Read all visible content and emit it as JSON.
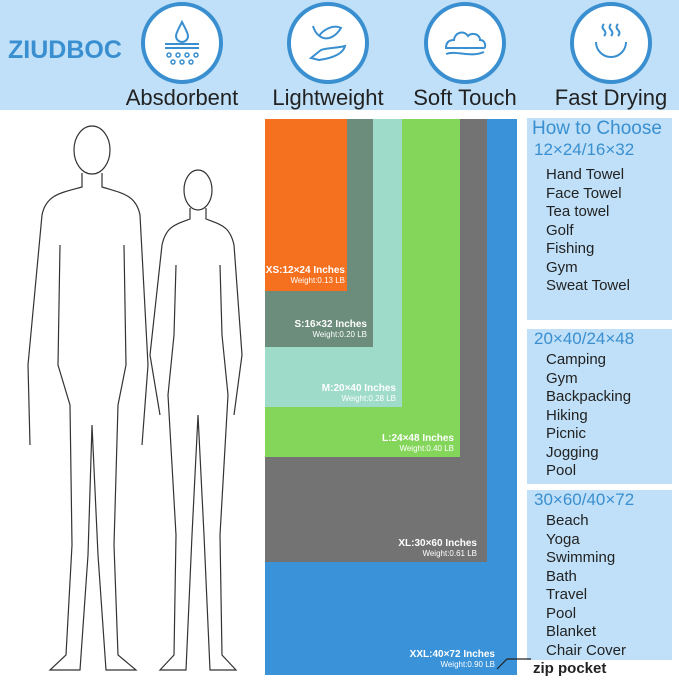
{
  "brand": "ZIUDBOC",
  "features": [
    {
      "label": "Absdorbent",
      "icon": "water-drop-absorb-icon"
    },
    {
      "label": "Lightweight",
      "icon": "feather-hand-icon"
    },
    {
      "label": "Soft Touch",
      "icon": "cloud-icon"
    },
    {
      "label": "Fast Drying",
      "icon": "steam-icon"
    }
  ],
  "sizes": [
    {
      "size": "XS:12×24 Inches",
      "weight": "Weight:0.13 LB",
      "color": "#f6711f"
    },
    {
      "size": "S:16×32 Inches",
      "weight": "Weight:0.20 LB",
      "color": "#6c8c7c"
    },
    {
      "size": "M:20×40 Inches",
      "weight": "Weight:0.28 LB",
      "color": "#9fdbc9"
    },
    {
      "size": "L:24×48 Inches",
      "weight": "Weight:0.40 LB",
      "color": "#84d65a"
    },
    {
      "size": "XL:30×60 Inches",
      "weight": "Weight:0.61 LB",
      "color": "#737373"
    },
    {
      "size": "XXL:40×72 Inches",
      "weight": "Weight:0.90 LB",
      "color": "#3a92d8"
    }
  ],
  "guide": {
    "title": "How to Choose",
    "groups": [
      {
        "dims": "12×24/16×32",
        "items": [
          "Hand Towel",
          "Face Towel",
          "Tea towel",
          "Golf",
          "Fishing",
          "Gym",
          "Sweat Towel"
        ]
      },
      {
        "dims": "20×40/24×48",
        "items": [
          "Camping",
          "Gym",
          "Backpacking",
          "Hiking",
          "Picnic",
          "Jogging",
          "Pool"
        ]
      },
      {
        "dims": "30×60/40×72",
        "items": [
          "Beach",
          "Yoga",
          "Swimming",
          "Bath",
          "Travel",
          "Pool",
          "Blanket",
          "Chair Cover"
        ]
      }
    ]
  },
  "zip_label": "zip pocket"
}
